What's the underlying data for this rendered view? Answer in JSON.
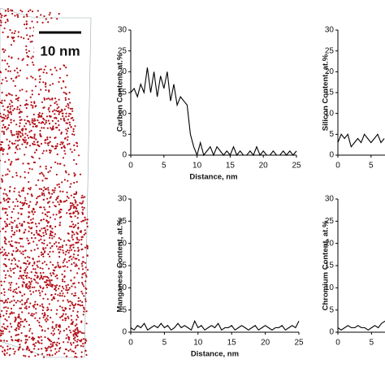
{
  "scale_bar": "10 nm",
  "chart_data": [
    {
      "type": "line",
      "ylabel": "Carbon Content, at.%",
      "xlabel": "Distance, nm",
      "color": "#000000",
      "xlim": [
        0,
        25
      ],
      "ylim": [
        0,
        30
      ],
      "xticks": [
        0,
        5,
        10,
        15,
        20,
        25
      ],
      "yticks": [
        0,
        5,
        10,
        15,
        20,
        25,
        30
      ],
      "x": [
        0,
        0.5,
        1,
        1.5,
        2,
        2.5,
        3,
        3.5,
        4,
        4.5,
        5,
        5.5,
        6,
        6.5,
        7,
        7.5,
        8,
        8.5,
        9,
        9.5,
        10,
        10.5,
        11,
        11.5,
        12,
        12.5,
        13,
        13.5,
        14,
        14.5,
        15,
        15.5,
        16,
        16.5,
        17,
        17.5,
        18,
        18.5,
        19,
        19.5,
        20,
        20.5,
        21,
        21.5,
        22,
        22.5,
        23,
        23.5,
        24,
        24.5,
        25
      ],
      "values": [
        15,
        16,
        14,
        17,
        15,
        21,
        15,
        20,
        14,
        19,
        16,
        20,
        13,
        17,
        12,
        14,
        13,
        12,
        5,
        2,
        0,
        3,
        0,
        1,
        2,
        0,
        2,
        1,
        0,
        1,
        0,
        2,
        0,
        1,
        0,
        0,
        1,
        0,
        2,
        0,
        1,
        0,
        0,
        1,
        0,
        0,
        1,
        0,
        1,
        0,
        1
      ]
    },
    {
      "type": "line",
      "ylabel": "Silicon Content, at.%",
      "color": "#000000",
      "xlim": [
        0,
        25
      ],
      "ylim": [
        0,
        30
      ],
      "xticks": [
        0,
        5
      ],
      "yticks": [
        0,
        5,
        10,
        15,
        20,
        25,
        30
      ],
      "x": [
        0,
        0.5,
        1,
        1.5,
        2,
        2.5,
        3,
        3.5,
        4,
        4.5,
        5,
        5.5,
        6,
        6.5,
        7
      ],
      "values": [
        3,
        5,
        4,
        5,
        2,
        3,
        4,
        3,
        5,
        4,
        3,
        4,
        5,
        3,
        4
      ]
    },
    {
      "type": "line",
      "ylabel": "Manganese Content, at.%",
      "xlabel": "Distance, nm",
      "color": "#000000",
      "xlim": [
        0,
        25
      ],
      "ylim": [
        0,
        30
      ],
      "xticks": [
        0,
        5,
        10,
        15,
        20,
        25
      ],
      "yticks": [
        0,
        5,
        10,
        15,
        20,
        25,
        30
      ],
      "x": [
        0,
        0.5,
        1,
        1.5,
        2,
        2.5,
        3,
        3.5,
        4,
        4.5,
        5,
        5.5,
        6,
        6.5,
        7,
        7.5,
        8,
        8.5,
        9,
        9.5,
        10,
        10.5,
        11,
        11.5,
        12,
        12.5,
        13,
        13.5,
        14,
        14.5,
        15,
        15.5,
        16,
        16.5,
        17,
        17.5,
        18,
        18.5,
        19,
        19.5,
        20,
        20.5,
        21,
        21.5,
        22,
        22.5,
        23,
        23.5,
        24,
        24.5,
        25
      ],
      "values": [
        1,
        0.5,
        1.5,
        1,
        2,
        0.5,
        1,
        1.5,
        1,
        2,
        1,
        1.5,
        0.5,
        1,
        2,
        1,
        1.5,
        1,
        0.5,
        2.5,
        1,
        1.5,
        0.5,
        1,
        1.5,
        1,
        2,
        0.5,
        1,
        1,
        1.5,
        0.5,
        1,
        1.5,
        1,
        0.5,
        1,
        1.5,
        0.5,
        1,
        1.5,
        1,
        0.5,
        1,
        1,
        1.5,
        0.5,
        1,
        1.5,
        1,
        2.5
      ]
    },
    {
      "type": "line",
      "ylabel": "Chromium Content, at.%",
      "color": "#000000",
      "xlim": [
        0,
        25
      ],
      "ylim": [
        0,
        30
      ],
      "xticks": [
        0,
        5
      ],
      "yticks": [
        0,
        5,
        10,
        15,
        20,
        25,
        30
      ],
      "x": [
        0,
        0.5,
        1,
        1.5,
        2,
        2.5,
        3,
        3.5,
        4,
        4.5,
        5,
        5.5,
        6,
        6.5,
        7
      ],
      "values": [
        1,
        0.5,
        1,
        1.5,
        1,
        1,
        1.5,
        1,
        1,
        0.5,
        1,
        1.5,
        1,
        2,
        2.5
      ]
    }
  ]
}
